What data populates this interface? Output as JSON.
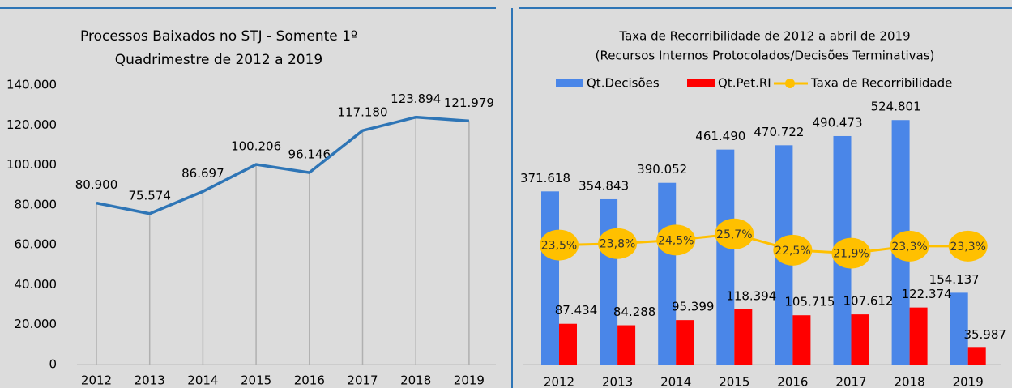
{
  "chart_data": [
    {
      "type": "line",
      "title": [
        "Processos  Baixados no STJ - Somente  1º",
        "Quadrimestre  de 2012 a 2019"
      ],
      "categories": [
        "2012",
        "2013",
        "2014",
        "2015",
        "2016",
        "2017",
        "2018",
        "2019"
      ],
      "values": [
        80900,
        75574,
        86697,
        100206,
        96146,
        117180,
        123894,
        121979
      ],
      "value_labels": [
        "80.900",
        "75.574",
        "86.697",
        "100.206",
        "96.146",
        "117.180",
        "123.894",
        "121.979"
      ],
      "color": "#2e75b6",
      "ylim": [
        0,
        140000
      ],
      "yticks": [
        0,
        {
          "value": 20000,
          "label": "20.000"
        },
        {
          "value": 40000,
          "label": "40.000"
        },
        {
          "value": 60000,
          "label": "60.000"
        },
        {
          "value": 80000,
          "label": "80.000"
        },
        {
          "value": 100000,
          "label": "100.000"
        },
        {
          "value": 120000,
          "label": "120.000"
        },
        {
          "value": 140000,
          "label": "140.000"
        }
      ]
    },
    {
      "type": "bar",
      "title": [
        "Taxa de Recorribilidade de 2012 a abril de 2019",
        "(Recursos Internos Protocolados/Decisões Terminativas)"
      ],
      "categories": [
        "2012",
        "2013",
        "2014",
        "2015",
        "2016",
        "2017",
        "2018",
        "2019"
      ],
      "ylim": [
        0,
        600000
      ],
      "y2lim": [
        0,
        55
      ],
      "series": [
        {
          "name": "Qt.Decisões",
          "color": "#4a86e8",
          "values": [
            371618,
            354843,
            390052,
            461490,
            470722,
            490473,
            524801,
            154137
          ],
          "value_labels": [
            "371.618",
            "354.843",
            "390.052",
            "461.490",
            "470.722",
            "490.473",
            "524.801",
            "154.137"
          ]
        },
        {
          "name": "Qt.Pet.RI",
          "color": "#ff0000",
          "values": [
            87434,
            84288,
            95399,
            118394,
            105715,
            107612,
            122374,
            35987
          ],
          "value_labels": [
            "87.434",
            "84.288",
            "95.399",
            "118.394",
            "105.715",
            "107.612",
            "122.374",
            "35.987"
          ]
        },
        {
          "name": "Taxa de Recorribilidade",
          "color": "#ffc000",
          "type": "line",
          "axis": "y2",
          "values": [
            23.5,
            23.8,
            24.5,
            25.7,
            22.5,
            21.9,
            23.3,
            23.3
          ],
          "value_labels": [
            "23,5%",
            "23,8%",
            "24,5%",
            "25,7%",
            "22,5%",
            "21,9%",
            "23,3%",
            "23,3%"
          ]
        }
      ]
    }
  ]
}
